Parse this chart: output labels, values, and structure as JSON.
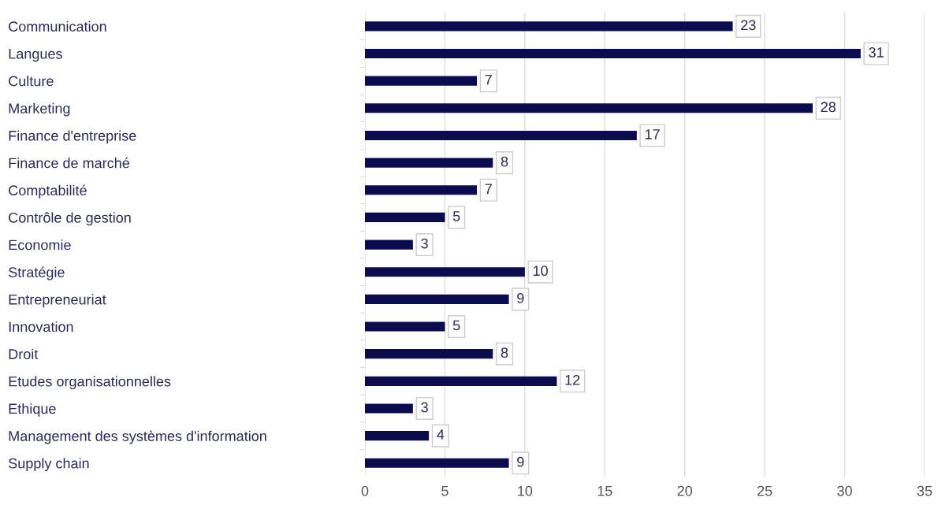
{
  "chart_data": {
    "type": "bar",
    "orientation": "horizontal",
    "categories": [
      "Communication",
      "Langues",
      "Culture",
      "Marketing",
      "Finance d'entreprise",
      "Finance de marché",
      "Comptabilité",
      "Contrôle de gestion",
      "Economie",
      "Stratégie",
      "Entrepreneuriat",
      "Innovation",
      "Droit",
      "Etudes organisationnelles",
      "Ethique",
      "Management des systèmes d'information",
      "Supply chain"
    ],
    "values": [
      23,
      31,
      7,
      28,
      17,
      8,
      7,
      5,
      3,
      10,
      9,
      5,
      8,
      12,
      3,
      4,
      9
    ],
    "color": "#0b0b4f",
    "xlim": [
      0,
      35
    ],
    "xticks": [
      0,
      5,
      10,
      15,
      20,
      25,
      30,
      35
    ],
    "grid": "x",
    "data_labels": true,
    "legend": false
  }
}
